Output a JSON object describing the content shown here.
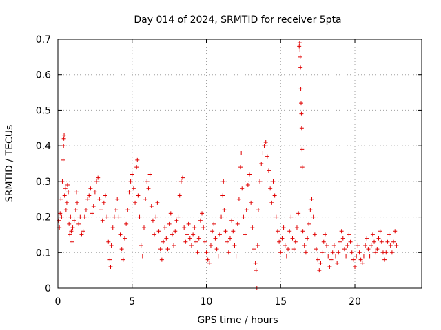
{
  "chart_data": {
    "type": "scatter",
    "title": "Day 014 of 2024, SRMTID for receiver 5pta",
    "xlabel": "GPS time / hours",
    "ylabel": "SRMTID / TECUs",
    "xlim": [
      0,
      24.5
    ],
    "ylim": [
      0,
      0.7
    ],
    "xticks": [
      0,
      5,
      10,
      15,
      20
    ],
    "yticks": [
      0,
      0.1,
      0.2,
      0.3,
      0.4,
      0.5,
      0.6,
      0.7
    ],
    "grid": true,
    "marker": "plus",
    "marker_color": "#e00000",
    "series": [
      {
        "name": "SRMTID",
        "points": [
          [
            0.05,
            0.19
          ],
          [
            0.1,
            0.17
          ],
          [
            0.15,
            0.21
          ],
          [
            0.2,
            0.25
          ],
          [
            0.25,
            0.2
          ],
          [
            0.3,
            0.3
          ],
          [
            0.35,
            0.36
          ],
          [
            0.38,
            0.4
          ],
          [
            0.4,
            0.42
          ],
          [
            0.42,
            0.43
          ],
          [
            0.45,
            0.26
          ],
          [
            0.5,
            0.28
          ],
          [
            0.55,
            0.22
          ],
          [
            0.6,
            0.24
          ],
          [
            0.65,
            0.29
          ],
          [
            0.7,
            0.27
          ],
          [
            0.75,
            0.18
          ],
          [
            0.8,
            0.15
          ],
          [
            0.85,
            0.2
          ],
          [
            0.9,
            0.16
          ],
          [
            0.95,
            0.13
          ],
          [
            1.0,
            0.17
          ],
          [
            1.1,
            0.19
          ],
          [
            1.2,
            0.22
          ],
          [
            1.25,
            0.27
          ],
          [
            1.3,
            0.24
          ],
          [
            1.4,
            0.18
          ],
          [
            1.5,
            0.2
          ],
          [
            1.6,
            0.15
          ],
          [
            1.7,
            0.16
          ],
          [
            1.8,
            0.2
          ],
          [
            1.9,
            0.22
          ],
          [
            2.0,
            0.25
          ],
          [
            2.1,
            0.26
          ],
          [
            2.2,
            0.28
          ],
          [
            2.3,
            0.21
          ],
          [
            2.4,
            0.23
          ],
          [
            2.5,
            0.27
          ],
          [
            2.6,
            0.3
          ],
          [
            2.7,
            0.31
          ],
          [
            2.8,
            0.25
          ],
          [
            2.9,
            0.22
          ],
          [
            3.0,
            0.19
          ],
          [
            3.1,
            0.24
          ],
          [
            3.2,
            0.26
          ],
          [
            3.3,
            0.2
          ],
          [
            3.4,
            0.13
          ],
          [
            3.5,
            0.08
          ],
          [
            3.55,
            0.06
          ],
          [
            3.6,
            0.12
          ],
          [
            3.7,
            0.17
          ],
          [
            3.8,
            0.2
          ],
          [
            3.9,
            0.22
          ],
          [
            4.0,
            0.25
          ],
          [
            4.1,
            0.2
          ],
          [
            4.2,
            0.15
          ],
          [
            4.3,
            0.11
          ],
          [
            4.4,
            0.08
          ],
          [
            4.5,
            0.14
          ],
          [
            4.6,
            0.18
          ],
          [
            4.7,
            0.22
          ],
          [
            4.8,
            0.27
          ],
          [
            4.9,
            0.3
          ],
          [
            5.0,
            0.32
          ],
          [
            5.1,
            0.28
          ],
          [
            5.2,
            0.24
          ],
          [
            5.3,
            0.34
          ],
          [
            5.35,
            0.36
          ],
          [
            5.4,
            0.26
          ],
          [
            5.5,
            0.2
          ],
          [
            5.6,
            0.12
          ],
          [
            5.7,
            0.09
          ],
          [
            5.8,
            0.17
          ],
          [
            5.9,
            0.25
          ],
          [
            6.0,
            0.3
          ],
          [
            6.1,
            0.28
          ],
          [
            6.2,
            0.32
          ],
          [
            6.3,
            0.23
          ],
          [
            6.4,
            0.19
          ],
          [
            6.5,
            0.15
          ],
          [
            6.6,
            0.2
          ],
          [
            6.7,
            0.24
          ],
          [
            6.8,
            0.16
          ],
          [
            6.9,
            0.11
          ],
          [
            7.0,
            0.08
          ],
          [
            7.1,
            0.13
          ],
          [
            7.2,
            0.17
          ],
          [
            7.3,
            0.14
          ],
          [
            7.4,
            0.11
          ],
          [
            7.5,
            0.18
          ],
          [
            7.6,
            0.21
          ],
          [
            7.7,
            0.15
          ],
          [
            7.8,
            0.12
          ],
          [
            7.9,
            0.16
          ],
          [
            8.0,
            0.19
          ],
          [
            8.1,
            0.2
          ],
          [
            8.2,
            0.26
          ],
          [
            8.3,
            0.3
          ],
          [
            8.4,
            0.31
          ],
          [
            8.5,
            0.17
          ],
          [
            8.6,
            0.13
          ],
          [
            8.7,
            0.15
          ],
          [
            8.8,
            0.18
          ],
          [
            8.9,
            0.14
          ],
          [
            9.0,
            0.12
          ],
          [
            9.1,
            0.15
          ],
          [
            9.2,
            0.17
          ],
          [
            9.3,
            0.13
          ],
          [
            9.4,
            0.1
          ],
          [
            9.5,
            0.14
          ],
          [
            9.6,
            0.19
          ],
          [
            9.7,
            0.21
          ],
          [
            9.8,
            0.17
          ],
          [
            9.9,
            0.13
          ],
          [
            10.0,
            0.1
          ],
          [
            10.1,
            0.08
          ],
          [
            10.2,
            0.07
          ],
          [
            10.3,
            0.12
          ],
          [
            10.4,
            0.16
          ],
          [
            10.5,
            0.18
          ],
          [
            10.6,
            0.14
          ],
          [
            10.7,
            0.11
          ],
          [
            10.8,
            0.09
          ],
          [
            10.9,
            0.15
          ],
          [
            11.0,
            0.2
          ],
          [
            11.1,
            0.26
          ],
          [
            11.15,
            0.3
          ],
          [
            11.2,
            0.22
          ],
          [
            11.3,
            0.16
          ],
          [
            11.4,
            0.13
          ],
          [
            11.5,
            0.1
          ],
          [
            11.6,
            0.14
          ],
          [
            11.7,
            0.19
          ],
          [
            11.8,
            0.16
          ],
          [
            11.9,
            0.12
          ],
          [
            12.0,
            0.09
          ],
          [
            12.1,
            0.18
          ],
          [
            12.2,
            0.25
          ],
          [
            12.3,
            0.34
          ],
          [
            12.35,
            0.38
          ],
          [
            12.4,
            0.28
          ],
          [
            12.5,
            0.2
          ],
          [
            12.6,
            0.15
          ],
          [
            12.7,
            0.22
          ],
          [
            12.8,
            0.29
          ],
          [
            12.9,
            0.32
          ],
          [
            13.0,
            0.24
          ],
          [
            13.1,
            0.17
          ],
          [
            13.2,
            0.11
          ],
          [
            13.3,
            0.07
          ],
          [
            13.35,
            0.05
          ],
          [
            13.4,
            0.0
          ],
          [
            13.45,
            0.12
          ],
          [
            13.5,
            0.22
          ],
          [
            13.6,
            0.3
          ],
          [
            13.7,
            0.35
          ],
          [
            13.8,
            0.38
          ],
          [
            13.9,
            0.4
          ],
          [
            14.0,
            0.41
          ],
          [
            14.1,
            0.37
          ],
          [
            14.2,
            0.33
          ],
          [
            14.3,
            0.28
          ],
          [
            14.4,
            0.24
          ],
          [
            14.5,
            0.3
          ],
          [
            14.6,
            0.26
          ],
          [
            14.7,
            0.2
          ],
          [
            14.8,
            0.16
          ],
          [
            14.9,
            0.13
          ],
          [
            15.0,
            0.1
          ],
          [
            15.1,
            0.14
          ],
          [
            15.2,
            0.17
          ],
          [
            15.3,
            0.12
          ],
          [
            15.4,
            0.09
          ],
          [
            15.5,
            0.11
          ],
          [
            15.6,
            0.16
          ],
          [
            15.7,
            0.2
          ],
          [
            15.8,
            0.14
          ],
          [
            15.9,
            0.11
          ],
          [
            16.0,
            0.13
          ],
          [
            16.1,
            0.17
          ],
          [
            16.2,
            0.21
          ],
          [
            16.25,
            0.68
          ],
          [
            16.28,
            0.69
          ],
          [
            16.3,
            0.67
          ],
          [
            16.32,
            0.65
          ],
          [
            16.34,
            0.62
          ],
          [
            16.36,
            0.56
          ],
          [
            16.38,
            0.52
          ],
          [
            16.4,
            0.49
          ],
          [
            16.42,
            0.45
          ],
          [
            16.44,
            0.39
          ],
          [
            16.46,
            0.34
          ],
          [
            16.5,
            0.16
          ],
          [
            16.6,
            0.12
          ],
          [
            16.7,
            0.1
          ],
          [
            16.8,
            0.14
          ],
          [
            16.9,
            0.18
          ],
          [
            17.0,
            0.22
          ],
          [
            17.1,
            0.25
          ],
          [
            17.2,
            0.2
          ],
          [
            17.3,
            0.15
          ],
          [
            17.4,
            0.11
          ],
          [
            17.5,
            0.08
          ],
          [
            17.6,
            0.05
          ],
          [
            17.7,
            0.07
          ],
          [
            17.8,
            0.1
          ],
          [
            17.9,
            0.13
          ],
          [
            18.0,
            0.15
          ],
          [
            18.1,
            0.12
          ],
          [
            18.2,
            0.09
          ],
          [
            18.3,
            0.06
          ],
          [
            18.4,
            0.08
          ],
          [
            18.5,
            0.1
          ],
          [
            18.6,
            0.12
          ],
          [
            18.7,
            0.09
          ],
          [
            18.8,
            0.07
          ],
          [
            18.9,
            0.1
          ],
          [
            19.0,
            0.13
          ],
          [
            19.1,
            0.16
          ],
          [
            19.2,
            0.14
          ],
          [
            19.3,
            0.11
          ],
          [
            19.4,
            0.09
          ],
          [
            19.5,
            0.12
          ],
          [
            19.6,
            0.15
          ],
          [
            19.7,
            0.13
          ],
          [
            19.8,
            0.1
          ],
          [
            19.9,
            0.08
          ],
          [
            20.0,
            0.06
          ],
          [
            20.1,
            0.09
          ],
          [
            20.2,
            0.12
          ],
          [
            20.3,
            0.1
          ],
          [
            20.4,
            0.08
          ],
          [
            20.5,
            0.07
          ],
          [
            20.6,
            0.09
          ],
          [
            20.7,
            0.12
          ],
          [
            20.8,
            0.14
          ],
          [
            20.9,
            0.11
          ],
          [
            21.0,
            0.09
          ],
          [
            21.1,
            0.12
          ],
          [
            21.2,
            0.15
          ],
          [
            21.3,
            0.13
          ],
          [
            21.4,
            0.1
          ],
          [
            21.5,
            0.11
          ],
          [
            21.6,
            0.14
          ],
          [
            21.7,
            0.16
          ],
          [
            21.8,
            0.13
          ],
          [
            21.9,
            0.1
          ],
          [
            22.0,
            0.08
          ],
          [
            22.1,
            0.1
          ],
          [
            22.2,
            0.13
          ],
          [
            22.3,
            0.15
          ],
          [
            22.4,
            0.12
          ],
          [
            22.5,
            0.1
          ],
          [
            22.6,
            0.13
          ],
          [
            22.7,
            0.16
          ],
          [
            22.8,
            0.12
          ]
        ]
      }
    ]
  }
}
